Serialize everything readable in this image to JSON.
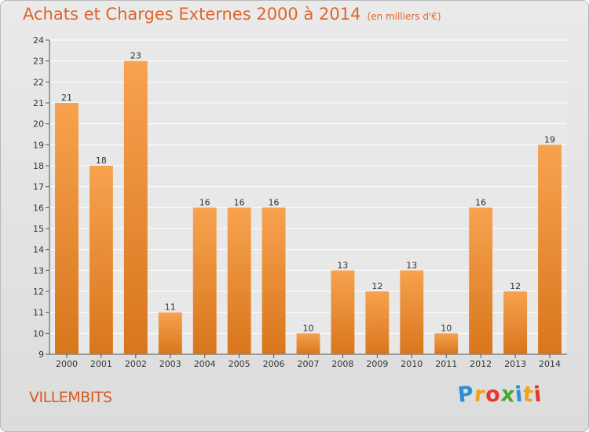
{
  "chart_data": {
    "type": "bar",
    "title": "Achats et Charges Externes 2000 à 2014",
    "subtitle": "(en milliers d'€)",
    "categories": [
      "2000",
      "2001",
      "2002",
      "2003",
      "2004",
      "2005",
      "2006",
      "2007",
      "2008",
      "2009",
      "2010",
      "2011",
      "2012",
      "2013",
      "2014"
    ],
    "values": [
      21,
      18,
      23,
      11,
      16,
      16,
      16,
      10,
      13,
      12,
      13,
      10,
      16,
      12,
      19
    ],
    "ylim": [
      9,
      24
    ],
    "yticks": [
      9,
      10,
      11,
      12,
      13,
      14,
      15,
      16,
      17,
      18,
      19,
      20,
      21,
      22,
      23,
      24
    ],
    "grid": true,
    "bar_color_top": "#f7a24f",
    "bar_color_bottom": "#d8761c"
  },
  "footer": {
    "town": "VILLEMBITS",
    "logo_letters": [
      {
        "ch": "P",
        "color": "#2d8fd4"
      },
      {
        "ch": "r",
        "color": "#f0a21c"
      },
      {
        "ch": "o",
        "color": "#e5352e"
      },
      {
        "ch": "x",
        "color": "#46a832"
      },
      {
        "ch": "i",
        "color": "#2d8fd4"
      },
      {
        "ch": "t",
        "color": "#f0a21c"
      },
      {
        "ch": "i",
        "color": "#e5352e"
      }
    ]
  },
  "colors": {
    "accent": "#e0652a",
    "text": "#333333",
    "grid": "#ffffff"
  }
}
